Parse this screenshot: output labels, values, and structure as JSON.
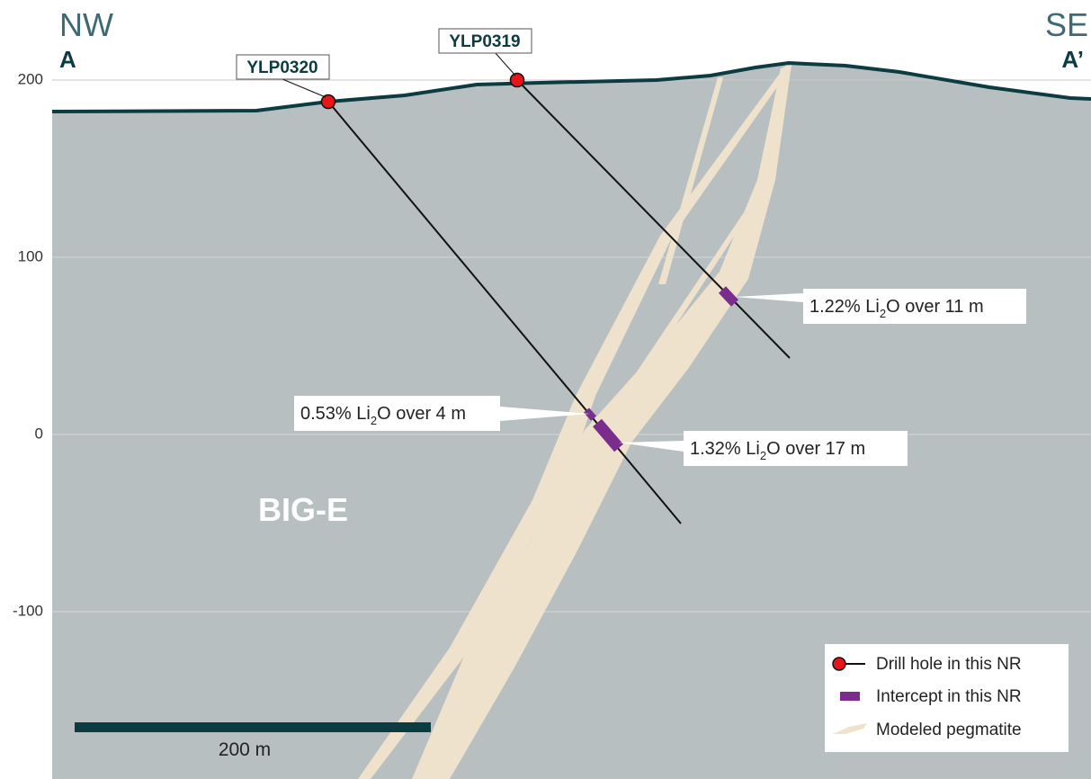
{
  "section": {
    "left_label": "NW",
    "left_letter": "A",
    "right_label": "SE",
    "right_letter": "A’",
    "zone_label": "BIG-E"
  },
  "y_axis": {
    "ticks": [
      200,
      100,
      0,
      -100
    ]
  },
  "drill_holes": [
    {
      "label": "YLP0320"
    },
    {
      "label": "YLP0319"
    }
  ],
  "intercepts": [
    {
      "grade": "1.22% Li",
      "sub": "2",
      "rest": "O over 11 m"
    },
    {
      "grade": "0.53% Li",
      "sub": "2",
      "rest": "O over 4 m"
    },
    {
      "grade": "1.32% Li",
      "sub": "2",
      "rest": "O over 17 m"
    }
  ],
  "legend": [
    "Drill hole in this NR",
    "Intercept in this NR",
    "Modeled pegmatite"
  ],
  "scale_bar": "200 m"
}
